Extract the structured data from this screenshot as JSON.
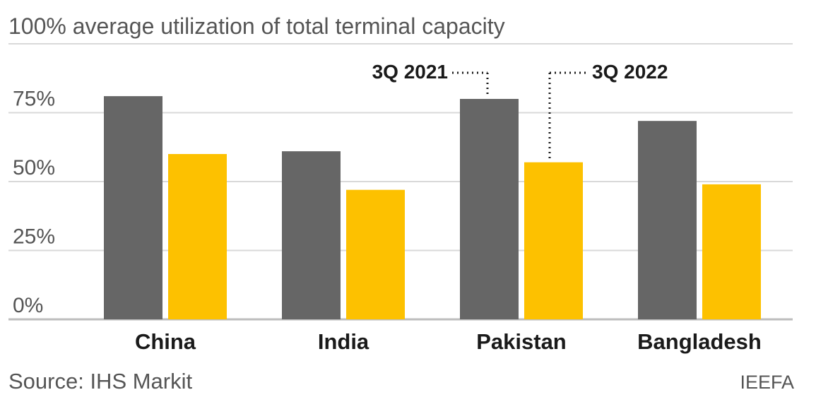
{
  "chart_data": {
    "type": "bar",
    "title": "100% average utilization of total terminal capacity",
    "categories": [
      "China",
      "India",
      "Pakistan",
      "Bangladesh"
    ],
    "series": [
      {
        "name": "3Q 2021",
        "color": "#666666",
        "values": [
          81,
          61,
          80,
          72
        ]
      },
      {
        "name": "3Q 2022",
        "color": "#FDC100",
        "values": [
          60,
          47,
          57,
          49
        ]
      }
    ],
    "yticks": [
      "0%",
      "25%",
      "50%",
      "75%"
    ],
    "ytick_values": [
      0,
      25,
      50,
      75
    ],
    "ylim": [
      0,
      100
    ],
    "grid": true,
    "xlabel": "",
    "ylabel": ""
  },
  "footer": {
    "source": "Source: IHS Markit",
    "credit": "IEEFA"
  }
}
